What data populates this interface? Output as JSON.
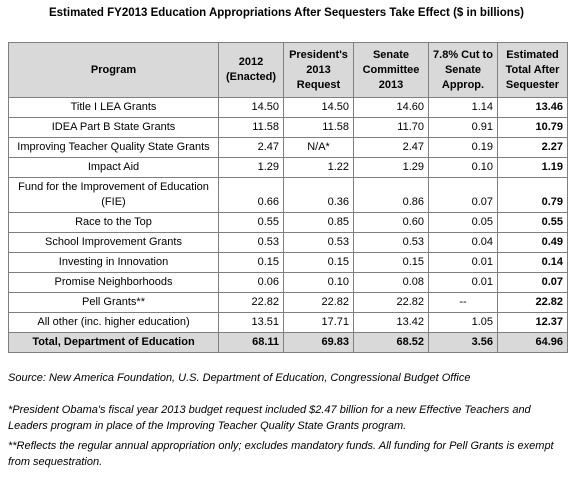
{
  "title": "Estimated FY2013 Education Appropriations After Sequesters Take Effect ($ in billions)",
  "table": {
    "columns": [
      "Program",
      "2012 (Enacted)",
      "President's 2013 Request",
      "Senate Committee 2013",
      "7.8% Cut to Senate Approp.",
      "Estimated Total After Sequester"
    ],
    "rows": [
      [
        "Title I LEA Grants",
        "14.50",
        "14.50",
        "14.60",
        "1.14",
        "13.46"
      ],
      [
        "IDEA Part B State Grants",
        "11.58",
        "11.58",
        "11.70",
        "0.91",
        "10.79"
      ],
      [
        "Improving Teacher Quality State Grants",
        "2.47",
        "N/A*",
        "2.47",
        "0.19",
        "2.27"
      ],
      [
        "Impact Aid",
        "1.29",
        "1.22",
        "1.29",
        "0.10",
        "1.19"
      ],
      [
        "Fund for the Improvement of Education (FIE)",
        "0.66",
        "0.36",
        "0.86",
        "0.07",
        "0.79"
      ],
      [
        "Race to the Top",
        "0.55",
        "0.85",
        "0.60",
        "0.05",
        "0.55"
      ],
      [
        "School Improvement Grants",
        "0.53",
        "0.53",
        "0.53",
        "0.04",
        "0.49"
      ],
      [
        "Investing in Innovation",
        "0.15",
        "0.15",
        "0.15",
        "0.01",
        "0.14"
      ],
      [
        "Promise Neighborhoods",
        "0.06",
        "0.10",
        "0.08",
        "0.01",
        "0.07"
      ],
      [
        "Pell Grants**",
        "22.82",
        "22.82",
        "22.82",
        "--",
        "22.82"
      ],
      [
        "All other (inc. higher education)",
        "13.51",
        "17.71",
        "13.42",
        "1.05",
        "12.37"
      ],
      [
        "Total, Department of Education",
        "68.11",
        "69.83",
        "68.52",
        "3.56",
        "64.96"
      ]
    ]
  },
  "source": "Source: New America Foundation, U.S. Department of Education, Congressional Budget Office",
  "footnotes": [
    "*President Obama's fiscal year 2013 budget request included $2.47 billion for a new Effective Teachers and Leaders program in place of the Improving Teacher Quality State Grants program.",
    "**Reflects the regular annual appropriation only; excludes mandatory funds. All funding for Pell Grants is exempt from sequestration."
  ]
}
